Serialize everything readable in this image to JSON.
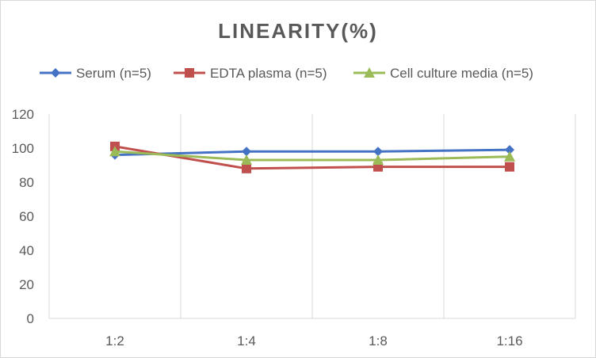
{
  "chart_data": {
    "type": "line",
    "title": "LINEARITY(%)",
    "xlabel": "",
    "ylabel": "",
    "categories": [
      "1:2",
      "1:4",
      "1:8",
      "1:16"
    ],
    "ylim": [
      0,
      120
    ],
    "y_ticks": [
      "0",
      "20",
      "40",
      "60",
      "80",
      "100",
      "120"
    ],
    "grid": "vertical",
    "legend_position": "top",
    "series": [
      {
        "name": "Serum (n=5)",
        "values": [
          96,
          98,
          98,
          99
        ],
        "color": "#4472C4",
        "marker": "diamond"
      },
      {
        "name": "EDTA plasma (n=5)",
        "values": [
          101,
          88,
          89,
          89
        ],
        "color": "#C0504D",
        "marker": "square"
      },
      {
        "name": "Cell culture media (n=5)",
        "values": [
          98,
          93,
          93,
          95
        ],
        "color": "#9BBB59",
        "marker": "triangle"
      }
    ]
  }
}
